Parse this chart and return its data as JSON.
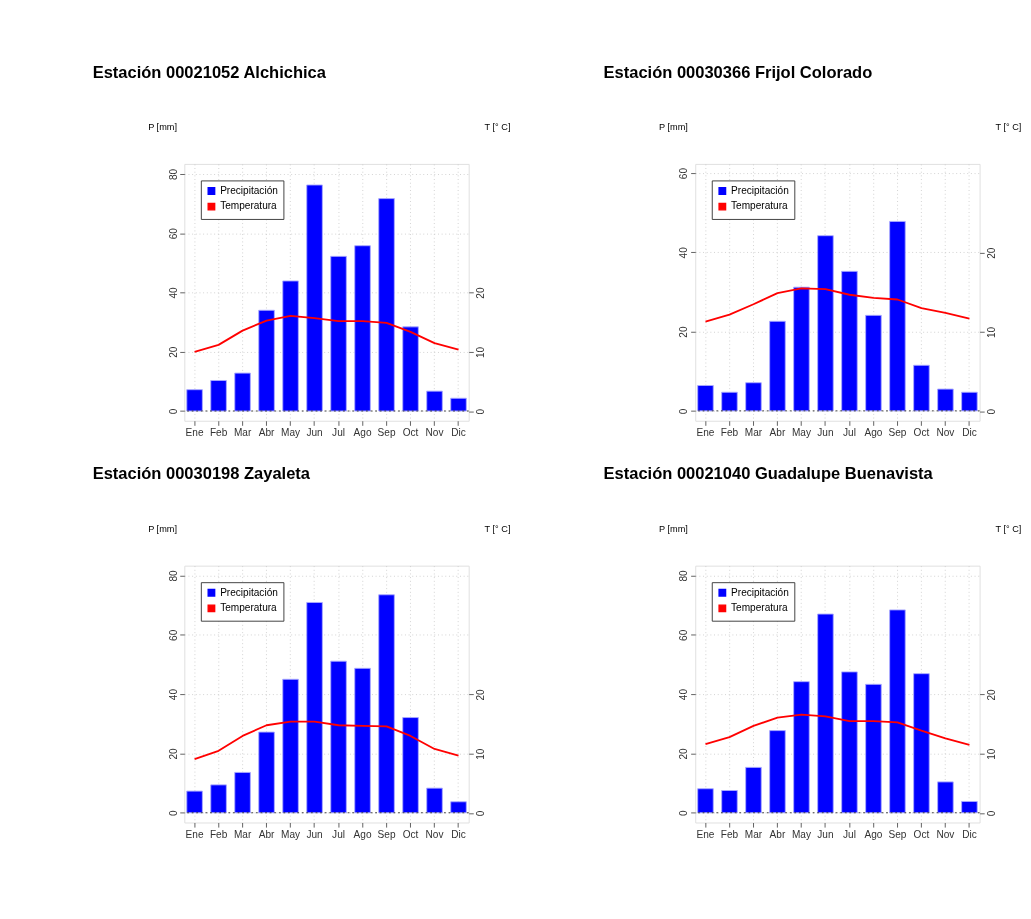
{
  "chart_data": [
    {
      "type": "bar",
      "title": "Estación 00021052 Alchichica",
      "ylabel": "P [mm]",
      "y2label": "T [° C]",
      "categories": [
        "Ene",
        "Feb",
        "Mar",
        "Abr",
        "May",
        "Jun",
        "Jul",
        "Ago",
        "Sep",
        "Oct",
        "Nov",
        "Dic"
      ],
      "series": [
        {
          "name": "Precipitación",
          "type": "bar",
          "color": "#0000ff",
          "values": [
            7.2,
            10.3,
            12.8,
            34.0,
            43.9,
            76.3,
            52.2,
            55.8,
            71.7,
            28.4,
            6.7,
            4.3
          ]
        },
        {
          "name": "Temperatura",
          "type": "line",
          "axis": "y2",
          "color": "#ff0000",
          "values": [
            10.0,
            11.2,
            13.6,
            15.3,
            16.1,
            15.7,
            15.2,
            15.2,
            14.9,
            13.4,
            11.5,
            10.4
          ]
        }
      ],
      "ylim": [
        -3.3,
        83.4
      ],
      "yticks": [
        0,
        20,
        40,
        60,
        80
      ],
      "y2lim": [
        -1.6,
        41.7
      ],
      "y2ticks": [
        0,
        10,
        20
      ],
      "ref_lines": [
        {
          "axis": "y",
          "value": 0,
          "line_style": "dotted",
          "color": "#333333"
        }
      ],
      "grid": true,
      "legend": "top left"
    },
    {
      "type": "bar",
      "title": "Estación 00030366 Frijol Colorado",
      "ylabel": "P [mm]",
      "y2label": "T [° C]",
      "categories": [
        "Ene",
        "Feb",
        "Mar",
        "Abr",
        "May",
        "Jun",
        "Jul",
        "Ago",
        "Sep",
        "Oct",
        "Nov",
        "Dic"
      ],
      "series": [
        {
          "name": "Precipitación",
          "type": "bar",
          "color": "#0000ff",
          "values": [
            6.4,
            4.7,
            7.1,
            22.6,
            31.2,
            44.2,
            35.2,
            24.1,
            47.8,
            11.5,
            5.5,
            4.7
          ]
        },
        {
          "name": "Temperatura",
          "type": "line",
          "axis": "y2",
          "color": "#ff0000",
          "values": [
            11.3,
            12.2,
            13.5,
            14.9,
            15.5,
            15.4,
            14.7,
            14.3,
            14.1,
            13.0,
            12.4,
            11.7
          ]
        }
      ],
      "ylim": [
        -2.5,
        62.3
      ],
      "yticks": [
        0,
        20,
        40,
        60
      ],
      "y2lim": [
        -1.2,
        31.2
      ],
      "y2ticks": [
        0,
        10,
        20
      ],
      "ref_lines": [
        {
          "axis": "y",
          "value": 0,
          "line_style": "dotted",
          "color": "#333333"
        }
      ],
      "grid": true,
      "legend": "top left"
    },
    {
      "type": "bar",
      "title": "Estación 00030198 Zayaleta",
      "ylabel": "P [mm]",
      "y2label": "T [° C]",
      "categories": [
        "Ene",
        "Feb",
        "Mar",
        "Abr",
        "May",
        "Jun",
        "Jul",
        "Ago",
        "Sep",
        "Oct",
        "Nov",
        "Dic"
      ],
      "series": [
        {
          "name": "Precipitación",
          "type": "bar",
          "color": "#0000ff",
          "values": [
            7.3,
            9.4,
            13.6,
            27.2,
            45.0,
            70.9,
            51.1,
            48.7,
            73.5,
            32.1,
            8.3,
            3.7
          ]
        },
        {
          "name": "Temperatura",
          "type": "line",
          "axis": "y2",
          "color": "#ff0000",
          "values": [
            9.1,
            10.5,
            13.0,
            14.8,
            15.4,
            15.4,
            14.8,
            14.7,
            14.6,
            13.0,
            10.8,
            9.7
          ]
        }
      ],
      "ylim": [
        -3.3,
        83.3
      ],
      "yticks": [
        0,
        20,
        40,
        60,
        80
      ],
      "y2lim": [
        -1.6,
        41.7
      ],
      "y2ticks": [
        0,
        10,
        20
      ],
      "ref_lines": [
        {
          "axis": "y",
          "value": 0,
          "line_style": "dotted",
          "color": "#333333"
        }
      ],
      "grid": true,
      "legend": "top left"
    },
    {
      "type": "bar",
      "title": "Estación 00021040 Guadalupe Buenavista",
      "ylabel": "P [mm]",
      "y2label": "T [° C]",
      "categories": [
        "Ene",
        "Feb",
        "Mar",
        "Abr",
        "May",
        "Jun",
        "Jul",
        "Ago",
        "Sep",
        "Oct",
        "Nov",
        "Dic"
      ],
      "series": [
        {
          "name": "Precipitación",
          "type": "bar",
          "color": "#0000ff",
          "values": [
            8.1,
            7.5,
            15.3,
            27.7,
            44.2,
            67.0,
            47.5,
            43.3,
            68.4,
            46.9,
            10.4,
            3.8
          ]
        },
        {
          "name": "Temperatura",
          "type": "line",
          "axis": "y2",
          "color": "#ff0000",
          "values": [
            11.6,
            12.8,
            14.7,
            16.1,
            16.6,
            16.3,
            15.5,
            15.5,
            15.3,
            13.9,
            12.6,
            11.5
          ]
        }
      ],
      "ylim": [
        -3.3,
        83.3
      ],
      "yticks": [
        0,
        20,
        40,
        60,
        80
      ],
      "y2lim": [
        -1.6,
        41.7
      ],
      "y2ticks": [
        0,
        10,
        20
      ],
      "ref_lines": [
        {
          "axis": "y",
          "value": 0,
          "line_style": "dotted",
          "color": "#333333"
        }
      ],
      "grid": true,
      "legend": "top left"
    }
  ]
}
